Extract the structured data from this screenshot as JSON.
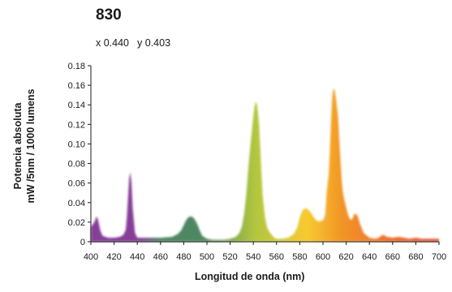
{
  "header": {
    "title": "830",
    "chromaticity": {
      "x_label": "x 0.440",
      "y_label": "y 0.403"
    }
  },
  "chart_data": {
    "type": "area",
    "title": "830",
    "subtitle": "x 0.440  y 0.403",
    "xlabel": "Longitud de onda (nm)",
    "ylabel_line1": "Potencia absoluta",
    "ylabel_line2": "mW /5nm / 1000 lumens",
    "xlim": [
      400,
      700
    ],
    "ylim": [
      0,
      0.18
    ],
    "x_ticks": [
      "400",
      "420",
      "440",
      "460",
      "480",
      "500",
      "520",
      "540",
      "560",
      "580",
      "600",
      "620",
      "640",
      "660",
      "680",
      "700"
    ],
    "y_ticks": [
      "0",
      "0.02",
      "0.04",
      "0.06",
      "0.08",
      "0.10",
      "0.12",
      "0.14",
      "0.16",
      "0.18"
    ],
    "grid": false,
    "colors": {
      "violet": "#7a2a8c",
      "blue_green": "#3a7a52",
      "yellow_green": "#a8c02a",
      "orange": "#f08a10",
      "red": "#e04020"
    },
    "series": [
      {
        "x": [
          400,
          403,
          405,
          406,
          407,
          408,
          410,
          415,
          420,
          425,
          428,
          430,
          431,
          432,
          433,
          434,
          435,
          436,
          438,
          440,
          450,
          460,
          470,
          475,
          478,
          480,
          482,
          484,
          486,
          488,
          490,
          492,
          494,
          496,
          500,
          505,
          510,
          515,
          520,
          525,
          528,
          530,
          532,
          534,
          536,
          538,
          540,
          541,
          542,
          543,
          544,
          545,
          546,
          547,
          548,
          550,
          552,
          555,
          558,
          560,
          565,
          570,
          575,
          578,
          580,
          582,
          584,
          586,
          588,
          590,
          592,
          595,
          598,
          600,
          602,
          603,
          605,
          606,
          607,
          608,
          609,
          610,
          611,
          612,
          613,
          614,
          615,
          616,
          617,
          618,
          620,
          621,
          622,
          623,
          624,
          625,
          626,
          627,
          628,
          630,
          632,
          635,
          640,
          645,
          648,
          650,
          652,
          655,
          660,
          665,
          670,
          675,
          680,
          685,
          690,
          695,
          700
        ],
        "y": [
          0.015,
          0.02,
          0.026,
          0.023,
          0.018,
          0.012,
          0.006,
          0.004,
          0.004,
          0.005,
          0.007,
          0.012,
          0.025,
          0.045,
          0.065,
          0.071,
          0.06,
          0.035,
          0.009,
          0.004,
          0.004,
          0.004,
          0.005,
          0.008,
          0.012,
          0.017,
          0.022,
          0.025,
          0.026,
          0.025,
          0.022,
          0.017,
          0.011,
          0.006,
          0.003,
          0.002,
          0.002,
          0.002,
          0.003,
          0.005,
          0.009,
          0.015,
          0.028,
          0.05,
          0.08,
          0.105,
          0.128,
          0.138,
          0.143,
          0.141,
          0.132,
          0.118,
          0.095,
          0.07,
          0.048,
          0.025,
          0.014,
          0.008,
          0.004,
          0.003,
          0.003,
          0.004,
          0.008,
          0.015,
          0.025,
          0.031,
          0.034,
          0.034,
          0.032,
          0.029,
          0.025,
          0.021,
          0.021,
          0.022,
          0.028,
          0.048,
          0.07,
          0.095,
          0.125,
          0.148,
          0.157,
          0.155,
          0.148,
          0.138,
          0.128,
          0.105,
          0.085,
          0.065,
          0.052,
          0.045,
          0.035,
          0.03,
          0.026,
          0.024,
          0.022,
          0.023,
          0.025,
          0.028,
          0.029,
          0.026,
          0.018,
          0.009,
          0.004,
          0.003,
          0.004,
          0.006,
          0.007,
          0.005,
          0.004,
          0.005,
          0.004,
          0.003,
          0.004,
          0.003,
          0.003,
          0.003,
          0.003
        ]
      }
    ]
  }
}
